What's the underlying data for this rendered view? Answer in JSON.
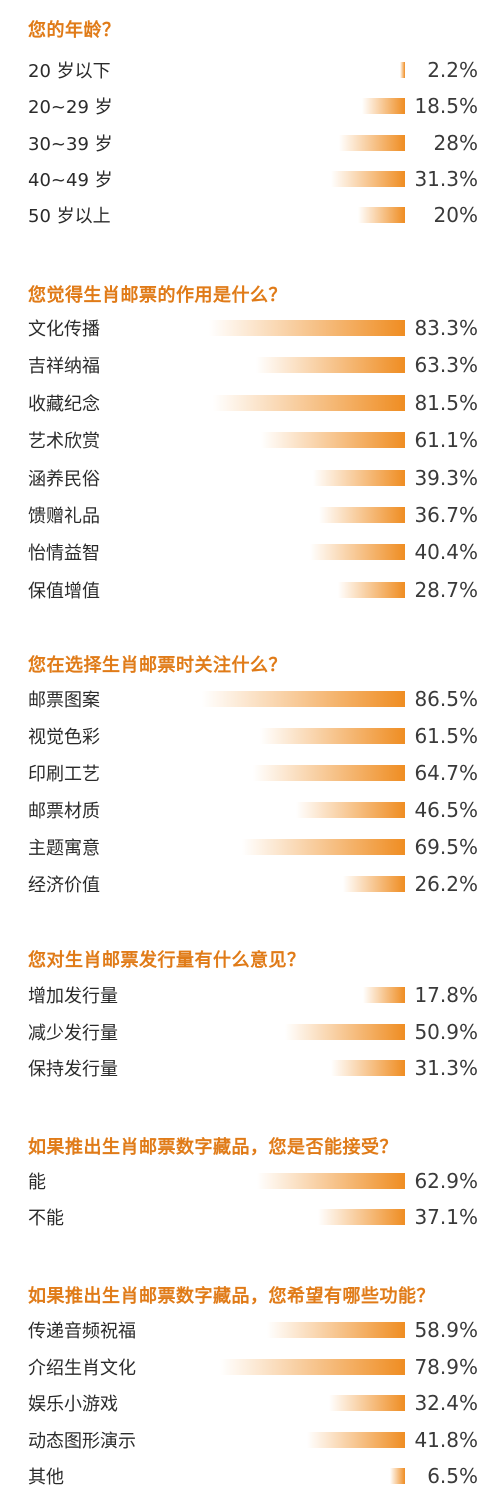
{
  "colors": {
    "title": "#e07b18",
    "bar_end": "#ef8d22",
    "bar_start": "#ffffff"
  },
  "chart_data": [
    {
      "type": "bar",
      "title": "您的年龄？",
      "categories": [
        "20 岁以下",
        "20~29 岁",
        "30~39 岁",
        "40~49 岁",
        "50 岁以上"
      ],
      "values": [
        2.2,
        18.5,
        28,
        31.3,
        20
      ],
      "value_labels": [
        "2.2%",
        "18.5%",
        "28%",
        "31.3%",
        "20%"
      ]
    },
    {
      "type": "bar",
      "title": "您觉得生肖邮票的作用是什么？",
      "categories": [
        "文化传播",
        "吉祥纳福",
        "收藏纪念",
        "艺术欣赏",
        "涵养民俗",
        "馈赠礼品",
        "怡情益智",
        "保值增值"
      ],
      "values": [
        83.3,
        63.3,
        81.5,
        61.1,
        39.3,
        36.7,
        40.4,
        28.7
      ],
      "value_labels": [
        "83.3%",
        "63.3%",
        "81.5%",
        "61.1%",
        "39.3%",
        "36.7%",
        "40.4%",
        "28.7%"
      ]
    },
    {
      "type": "bar",
      "title": "您在选择生肖邮票时关注什么？",
      "categories": [
        "邮票图案",
        "视觉色彩",
        "印刷工艺",
        "邮票材质",
        "主题寓意",
        "经济价值"
      ],
      "values": [
        86.5,
        61.5,
        64.7,
        46.5,
        69.5,
        26.2
      ],
      "value_labels": [
        "86.5%",
        "61.5%",
        "64.7%",
        "46.5%",
        "69.5%",
        "26.2%"
      ]
    },
    {
      "type": "bar",
      "title": "您对生肖邮票发行量有什么意见？",
      "categories": [
        "增加发行量",
        "减少发行量",
        "保持发行量"
      ],
      "values": [
        17.8,
        50.9,
        31.3
      ],
      "value_labels": [
        "17.8%",
        "50.9%",
        "31.3%"
      ]
    },
    {
      "type": "bar",
      "title": "如果推出生肖邮票数字藏品，您是否能接受？",
      "categories": [
        "能",
        "不能"
      ],
      "values": [
        62.9,
        37.1
      ],
      "value_labels": [
        "62.9%",
        "37.1%"
      ]
    },
    {
      "type": "bar",
      "title": "如果推出生肖邮票数字藏品，您希望有哪些功能？",
      "categories": [
        "传递音频祝福",
        "介绍生肖文化",
        "娱乐小游戏",
        "动态图形演示",
        "其他"
      ],
      "values": [
        58.9,
        78.9,
        32.4,
        41.8,
        6.5
      ],
      "value_labels": [
        "58.9%",
        "78.9%",
        "32.4%",
        "41.8%",
        "6.5%"
      ]
    }
  ]
}
